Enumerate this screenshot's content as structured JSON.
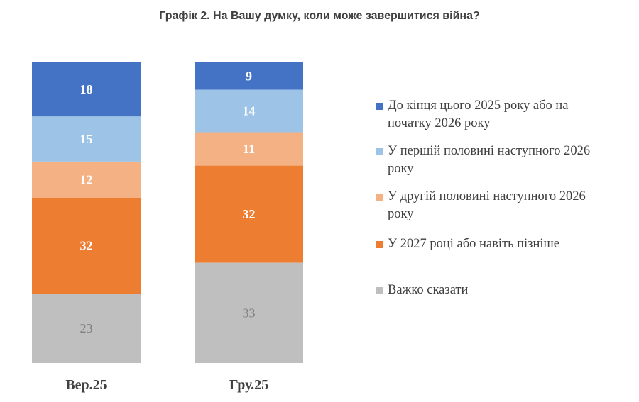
{
  "chart_data": {
    "type": "bar",
    "stacked": true,
    "title": "Графік 2. На Вашу думку, коли може завершитися війна?",
    "categories": [
      "Вер.25",
      "Гру.25"
    ],
    "series": [
      {
        "name": "До кінця цього 2025 року або на початку 2026 року",
        "values": [
          18,
          9
        ],
        "color": "#4472C4",
        "label_color": "#FFFFFF"
      },
      {
        "name": "У першій половині наступного 2026 року",
        "values": [
          15,
          14
        ],
        "color": "#9DC3E6",
        "label_color": "#FFFFFF"
      },
      {
        "name": "У другій половині наступного 2026 року",
        "values": [
          12,
          11
        ],
        "color": "#F4B183",
        "label_color": "#FFFFFF"
      },
      {
        "name": "У 2027 році або навіть пізніше",
        "values": [
          32,
          32
        ],
        "color": "#ED7D31",
        "label_color": "#FFFFFF"
      },
      {
        "name": "Важко сказати",
        "values": [
          23,
          33
        ],
        "color": "#BFBFBF",
        "label_color": "#7F7F7F"
      }
    ],
    "legend": "right",
    "grid": false,
    "xlabel": "",
    "ylabel": ""
  }
}
